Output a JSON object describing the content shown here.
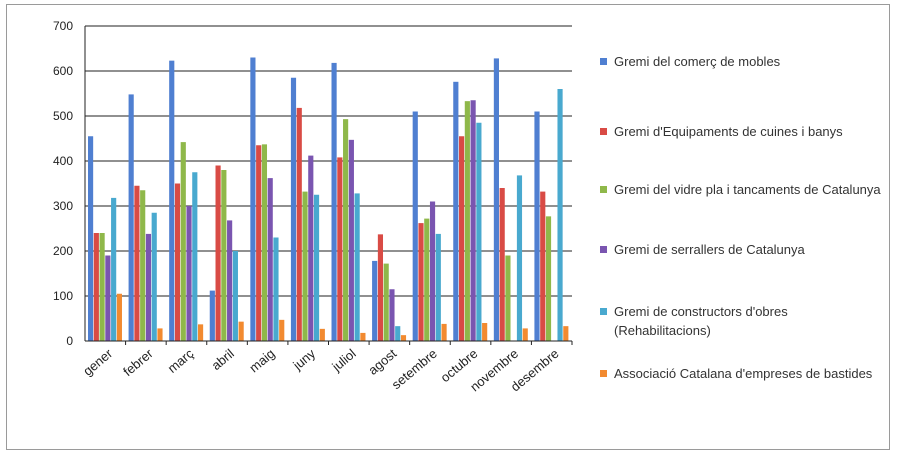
{
  "chart_data": {
    "type": "bar",
    "title": "",
    "xlabel": "",
    "ylabel": "",
    "ylim": [
      0,
      700
    ],
    "yticks": [
      0,
      100,
      200,
      300,
      400,
      500,
      600,
      700
    ],
    "grid": true,
    "legend_position": "right",
    "categories": [
      "gener",
      "febrer",
      "març",
      "abril",
      "maig",
      "juny",
      "juliol",
      "agost",
      "setembre",
      "octubre",
      "novembre",
      "desembre"
    ],
    "series": [
      {
        "name": "Gremi del comerç de mobles",
        "color": "#4f7fd1",
        "values": [
          455,
          548,
          623,
          112,
          630,
          585,
          618,
          178,
          510,
          576,
          628,
          510
        ]
      },
      {
        "name": "Gremi d'Equipaments de cuines i banys",
        "color": "#d94b45",
        "values": [
          240,
          345,
          350,
          390,
          435,
          518,
          408,
          237,
          262,
          455,
          340,
          332
        ]
      },
      {
        "name": "Gremi del vidre pla i tancaments de Catalunya",
        "color": "#8fb84a",
        "values": [
          240,
          335,
          442,
          380,
          437,
          332,
          493,
          172,
          272,
          533,
          190,
          277
        ]
      },
      {
        "name": "Gremi de serrallers de Catalunya",
        "color": "#7a55b0",
        "values": [
          190,
          238,
          300,
          268,
          362,
          412,
          447,
          115,
          310,
          535,
          0,
          0
        ]
      },
      {
        "name": "Gremi de constructors d'obres (Rehabilitacions)",
        "color": "#49a9cf",
        "values": [
          318,
          285,
          375,
          200,
          230,
          325,
          328,
          33,
          238,
          485,
          368,
          560
        ]
      },
      {
        "name": "Associació Catalana d'empreses de bastides",
        "color": "#f28a30",
        "values": [
          105,
          28,
          37,
          43,
          47,
          27,
          18,
          13,
          38,
          40,
          28,
          33
        ]
      }
    ]
  },
  "legend": {
    "items": [
      {
        "label": "Gremi del comerç de mobles"
      },
      {
        "label": "Gremi d'Equipaments de cuines i banys"
      },
      {
        "label": "Gremi del vidre pla i tancaments de Catalunya"
      },
      {
        "label": "Gremi de serrallers de Catalunya"
      },
      {
        "label": "Gremi de constructors d'obres (Rehabilitacions)"
      },
      {
        "label": "Associació Catalana d'empreses de bastides"
      }
    ]
  }
}
